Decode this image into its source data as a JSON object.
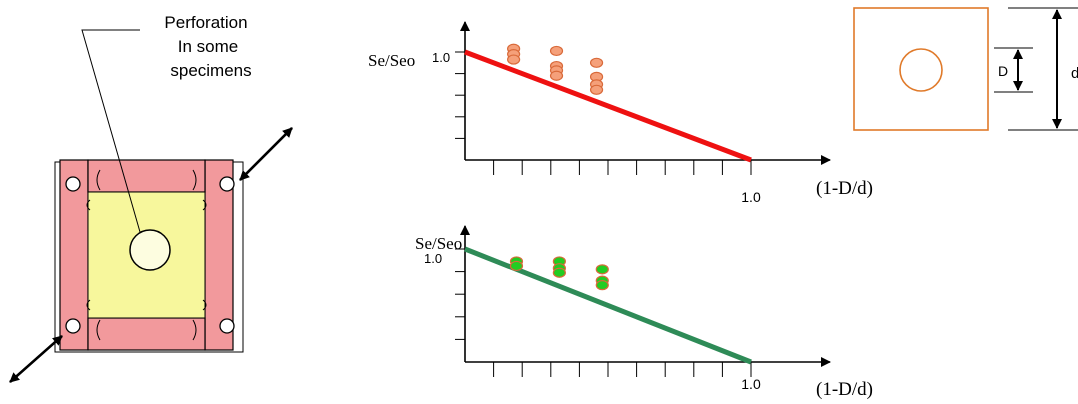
{
  "specimen": {
    "callout_line1": "Perforation",
    "callout_line2": "In some",
    "callout_line3": "specimens"
  },
  "geometry_detail": {
    "D_label": "D",
    "d_label": "d"
  },
  "chart_data": [
    {
      "type": "scatter",
      "ylabel": "Se/Seo",
      "xlabel": "(1-D/d)",
      "x_tick_label": "1.0",
      "y_tick_label": "1.0",
      "xlim": [
        0,
        1.0
      ],
      "ylim": [
        0,
        1.0
      ],
      "series": [
        {
          "kind": "points",
          "points": [
            [
              0.17,
              1.03
            ],
            [
              0.17,
              0.98
            ],
            [
              0.17,
              0.93
            ],
            [
              0.32,
              1.01
            ],
            [
              0.32,
              0.87
            ],
            [
              0.32,
              0.83
            ],
            [
              0.32,
              0.78
            ],
            [
              0.46,
              0.9
            ],
            [
              0.46,
              0.77
            ],
            [
              0.46,
              0.7
            ],
            [
              0.46,
              0.65
            ]
          ]
        },
        {
          "kind": "line",
          "points": [
            [
              0,
              1.0
            ],
            [
              1.0,
              0
            ]
          ]
        }
      ],
      "colors": {
        "line": "#ee1111",
        "point_fill": "#f5a07a",
        "point_stroke": "#d96a3a"
      }
    },
    {
      "type": "scatter",
      "ylabel": "Se/Seo",
      "xlabel": "(1-D/d)",
      "x_tick_label": "1.0",
      "y_tick_label": "1.0",
      "xlim": [
        0,
        1.0
      ],
      "ylim": [
        0,
        1.0
      ],
      "series": [
        {
          "kind": "points",
          "points": [
            [
              0.18,
              0.89
            ],
            [
              0.18,
              0.85
            ],
            [
              0.33,
              0.89
            ],
            [
              0.33,
              0.83
            ],
            [
              0.33,
              0.79
            ],
            [
              0.48,
              0.82
            ],
            [
              0.48,
              0.72
            ],
            [
              0.48,
              0.68
            ]
          ]
        },
        {
          "kind": "line",
          "points": [
            [
              0,
              1.0
            ],
            [
              1.0,
              0
            ]
          ]
        }
      ],
      "colors": {
        "line": "#2e8b57",
        "point_fill": "#22cc22",
        "point_stroke": "#d96a3a"
      }
    }
  ]
}
